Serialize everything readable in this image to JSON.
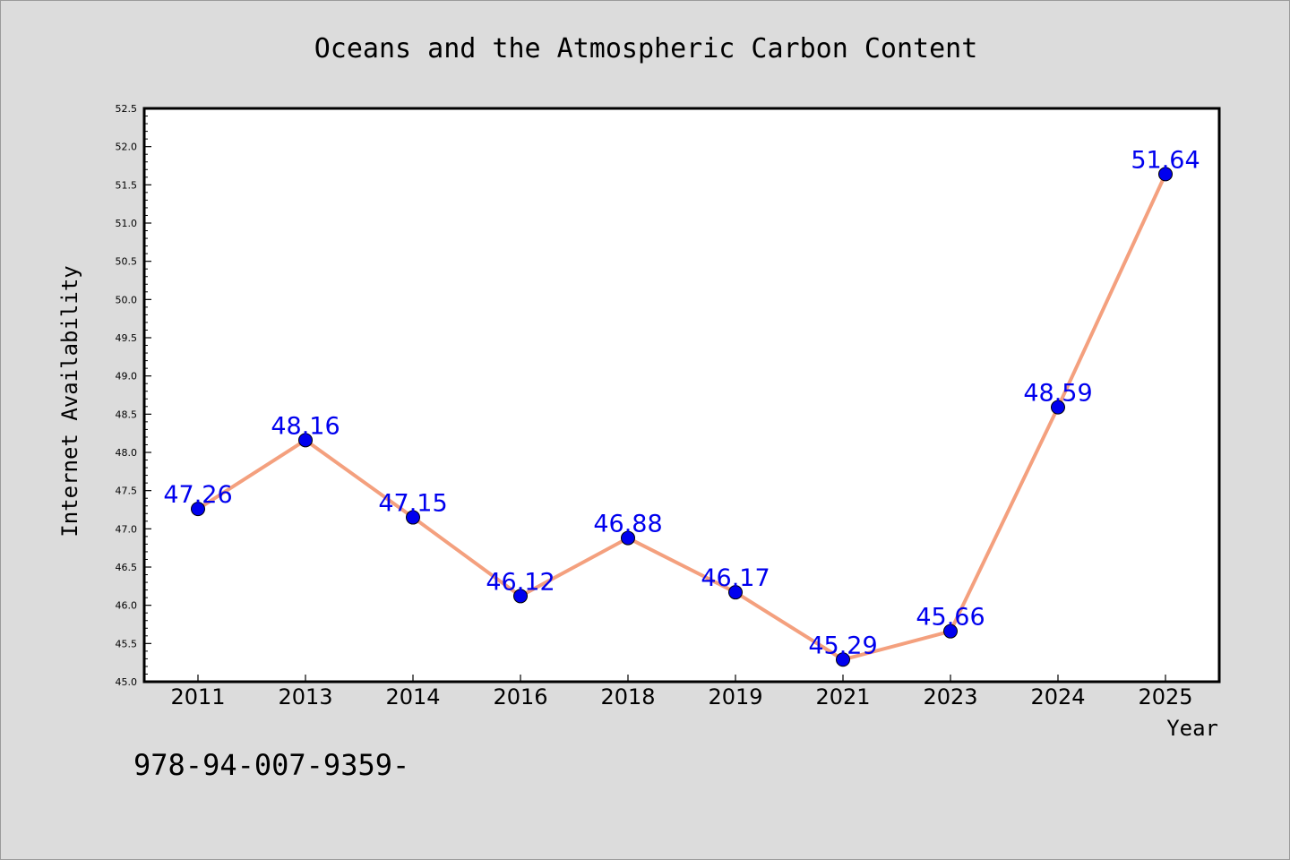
{
  "chart_data": {
    "type": "line",
    "title": "Oceans and the Atmospheric Carbon Content",
    "xlabel": "Year",
    "ylabel": "Internet Availability",
    "categories": [
      "2011",
      "2013",
      "2014",
      "2016",
      "2018",
      "2019",
      "2021",
      "2023",
      "2024",
      "2025"
    ],
    "values": [
      47.26,
      48.16,
      47.15,
      46.12,
      46.88,
      46.17,
      45.29,
      45.66,
      48.59,
      51.64
    ],
    "data_labels": [
      "47.26",
      "48.16",
      "47.15",
      "46.12",
      "46.88",
      "46.17",
      "45.29",
      "45.66",
      "48.59",
      "51.64"
    ],
    "ylim": [
      45.0,
      52.5
    ],
    "yticks": [
      "45.0",
      "45.5",
      "46.0",
      "46.5",
      "47.0",
      "47.5",
      "48.0",
      "48.5",
      "49.0",
      "49.5",
      "50.0",
      "50.5",
      "51.0",
      "51.5",
      "52.0",
      "52.5"
    ],
    "grid": false,
    "line_color": "#f4a07e",
    "marker_color": "#0000ee",
    "label_color": "#0000ee",
    "annotation": "978-94-007-9359-"
  }
}
